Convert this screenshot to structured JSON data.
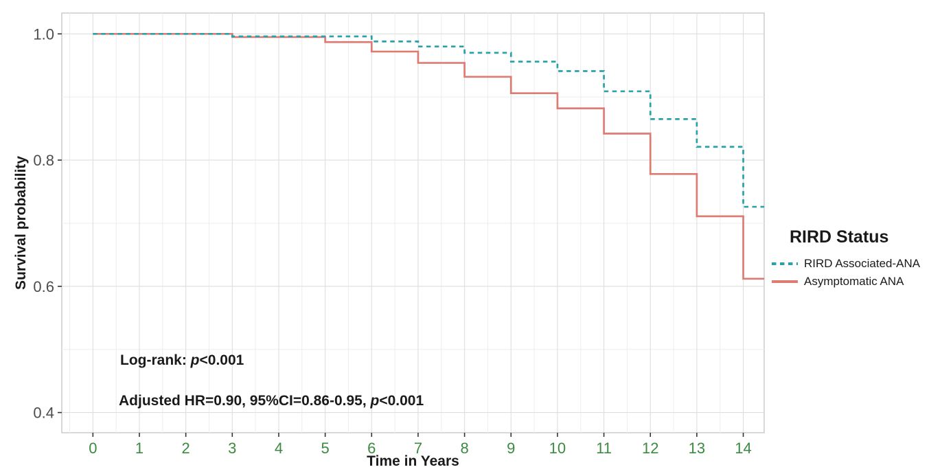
{
  "chart_data": {
    "type": "line",
    "subtype": "kaplan-meier-step",
    "title": "",
    "xlabel": "Time in Years",
    "ylabel": "Survival probability",
    "xlim": [
      -0.67,
      14.45
    ],
    "ylim": [
      0.368,
      1.033
    ],
    "x_ticks": [
      0,
      1,
      2,
      3,
      4,
      5,
      6,
      7,
      8,
      9,
      10,
      11,
      12,
      13,
      14
    ],
    "y_ticks": [
      0.4,
      0.6,
      0.8,
      1.0
    ],
    "y_tick_labels": [
      "0.4",
      "0.6",
      "0.8",
      "1.0"
    ],
    "y_minor_ticks": [
      0.5,
      0.7,
      0.9
    ],
    "grid": true,
    "legend_position": "right",
    "series": [
      {
        "name": "Asymptomatic ANA",
        "color": "#DE7B73",
        "line_style": "solid",
        "steps": [
          [
            0,
            1.0
          ],
          [
            3,
            0.995
          ],
          [
            5,
            0.987
          ],
          [
            6,
            0.972
          ],
          [
            7,
            0.954
          ],
          [
            8,
            0.932
          ],
          [
            9,
            0.906
          ],
          [
            10,
            0.882
          ],
          [
            11,
            0.842
          ],
          [
            12,
            0.778
          ],
          [
            13,
            0.711
          ],
          [
            14,
            0.612
          ]
        ],
        "end_time": 14.45
      },
      {
        "name": "RIRD Associated-ANA",
        "color": "#2AA2AA",
        "line_style": "dashed",
        "steps": [
          [
            0,
            1.0
          ],
          [
            3,
            0.996
          ],
          [
            6,
            0.988
          ],
          [
            7,
            0.98
          ],
          [
            8,
            0.97
          ],
          [
            9,
            0.956
          ],
          [
            10,
            0.941
          ],
          [
            11,
            0.909
          ],
          [
            12,
            0.865
          ],
          [
            13,
            0.821
          ],
          [
            14,
            0.726
          ]
        ],
        "end_time": 14.45
      }
    ],
    "annotations": [
      {
        "id": "log-rank",
        "segments": [
          {
            "text": "Log-rank: ",
            "italic": false
          },
          {
            "text": "p",
            "italic": true
          },
          {
            "text": "<0.001",
            "italic": false
          }
        ]
      },
      {
        "id": "adjusted-hr",
        "segments": [
          {
            "text": "Adjusted HR=0.90, 95%CI=0.86-0.95, ",
            "italic": false
          },
          {
            "text": "p",
            "italic": true
          },
          {
            "text": "<0.001",
            "italic": false
          }
        ]
      }
    ]
  },
  "legend": {
    "title": "RIRD Status",
    "entries": [
      {
        "label": "RIRD Associated-ANA",
        "color": "#2AA2AA",
        "style": "dashed"
      },
      {
        "label": "Asymptomatic ANA",
        "color": "#DE7B73",
        "style": "solid"
      }
    ]
  },
  "colors": {
    "x_tick_label": "#3A8A40",
    "y_tick_label": "#4D4D4D",
    "axis_title": "#1A1A1A",
    "annotation_text": "#1A1A1A",
    "grid_major": "#DEDEDE",
    "grid_minor": "#EDEDED",
    "panel_border": "#C8C8C8",
    "tick_mark": "#333333",
    "panel_background": "#FFFFFF"
  }
}
